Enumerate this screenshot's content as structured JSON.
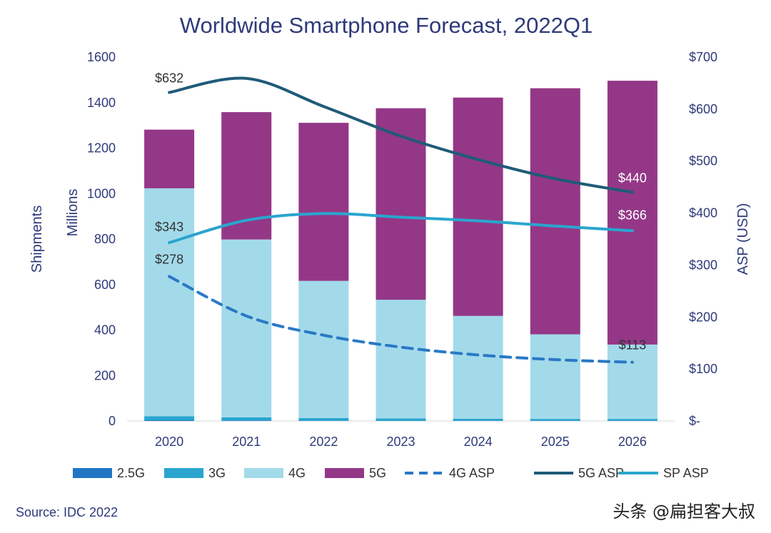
{
  "chart_data": {
    "type": "bar",
    "title": "Worldwide Smartphone Forecast, 2022Q1",
    "ylabel_left": [
      "Shipments",
      "Millions"
    ],
    "ylabel_right": "ASP (USD)",
    "categories": [
      "2020",
      "2021",
      "2022",
      "2023",
      "2024",
      "2025",
      "2026"
    ],
    "ylim_left": [
      0,
      1600
    ],
    "ylim_right": [
      0,
      700
    ],
    "yticks_left": [
      "0",
      "200",
      "400",
      "600",
      "800",
      "1000",
      "1200",
      "1400",
      "1600"
    ],
    "yticks_right": [
      "$-",
      "$100",
      "$200",
      "$300",
      "$400",
      "$500",
      "$600",
      "$700"
    ],
    "stacked_series": [
      {
        "name": "2.5G",
        "color": "#1f77c4",
        "values": [
          3,
          2,
          1,
          1,
          1,
          1,
          1
        ]
      },
      {
        "name": "3G",
        "color": "#2aa5cf",
        "values": [
          18,
          14,
          12,
          10,
          9,
          8,
          8
        ]
      },
      {
        "name": "4G",
        "color": "#a2daea",
        "values": [
          1002,
          782,
          603,
          522,
          452,
          372,
          327
        ]
      },
      {
        "name": "5G",
        "color": "#943787",
        "values": [
          258,
          560,
          695,
          842,
          960,
          1082,
          1160
        ]
      }
    ],
    "line_series": [
      {
        "name": "4G ASP",
        "color": "#2a79c6",
        "style": "dashed",
        "values": [
          278,
          202,
          165,
          142,
          127,
          118,
          113
        ]
      },
      {
        "name": "5G ASP",
        "color": "#1f5b78",
        "style": "solid",
        "values": [
          632,
          659,
          605,
          548,
          503,
          466,
          440
        ]
      },
      {
        "name": "SP ASP",
        "color": "#2aa5cf",
        "style": "solid",
        "values": [
          343,
          386,
          399,
          392,
          385,
          375,
          366
        ]
      }
    ],
    "data_labels": [
      {
        "series": "5G ASP",
        "index": 0,
        "text": "$632"
      },
      {
        "series": "5G ASP",
        "index": 6,
        "text": "$440"
      },
      {
        "series": "SP ASP",
        "index": 0,
        "text": "$343"
      },
      {
        "series": "SP ASP",
        "index": 6,
        "text": "$366"
      },
      {
        "series": "4G ASP",
        "index": 0,
        "text": "$278"
      },
      {
        "series": "4G ASP",
        "index": 6,
        "text": "$113"
      }
    ],
    "legend": {
      "position": "bottom",
      "items": [
        {
          "label": "2.5G",
          "kind": "box",
          "color": "#1f77c4"
        },
        {
          "label": "3G",
          "kind": "box",
          "color": "#2aa5cf"
        },
        {
          "label": "4G",
          "kind": "box",
          "color": "#a2daea"
        },
        {
          "label": "5G",
          "kind": "box",
          "color": "#943787"
        },
        {
          "label": "4G ASP",
          "kind": "dashed-line",
          "color": "#2a79c6"
        },
        {
          "label": "5G ASP",
          "kind": "line",
          "color": "#1f5b78"
        },
        {
          "label": "SP ASP",
          "kind": "line",
          "color": "#2aa5cf"
        }
      ]
    },
    "grid": false
  },
  "footer": {
    "source": "Source: IDC 2022",
    "watermark": "头条 @扁担客大叔"
  },
  "colors": {
    "title": "#2f3a7a",
    "axis_text": "#2f3a7a",
    "label_text": "#333333"
  }
}
